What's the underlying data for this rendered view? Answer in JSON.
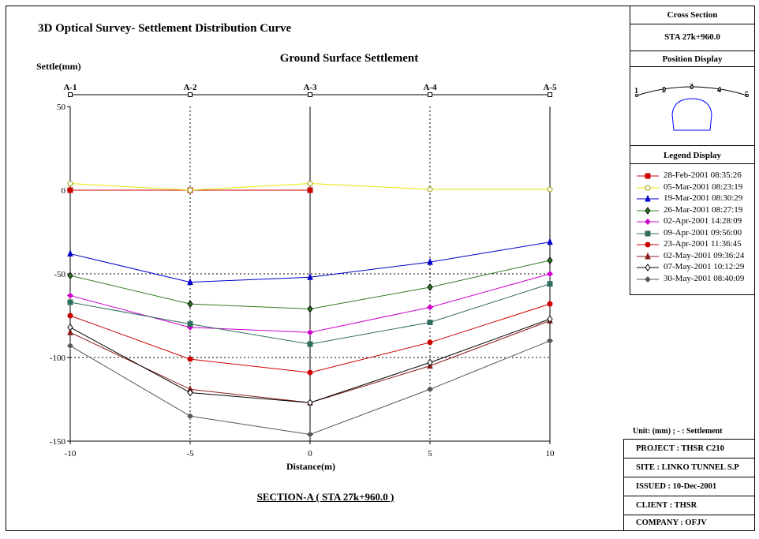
{
  "title": "3D Optical Survey-  Settlement Distribution Curve",
  "chart_title": "Ground Surface Settlement",
  "y_axis_title": "Settle(mm)",
  "x_axis_title": "Distance(m)",
  "section_label": "SECTION-A ( STA 27k+960.0 )",
  "sidebar": {
    "cross_section_heading": "Cross Section",
    "cross_section_value": "STA 27k+960.0",
    "position_heading": "Position Display",
    "position_points": [
      "1",
      "2",
      "3",
      "4",
      "5"
    ],
    "legend_heading": "Legend Display"
  },
  "unit_note": "Unit: (mm)  ;  - : Settlement",
  "info": [
    "PROJECT : THSR C210",
    "SITE : LINKO TUNNEL S.P",
    "ISSUED : 10-Dec-2001",
    "CLIENT : THSR",
    "COMPANY : OFJV"
  ],
  "chart_data": {
    "type": "line",
    "title": "Ground Surface Settlement",
    "xlabel": "Distance(m)",
    "ylabel": "Settle(mm)",
    "x": [
      -10,
      -5,
      0,
      5,
      10
    ],
    "x_ticks": [
      "-10",
      "-5",
      "0",
      "5",
      "10"
    ],
    "y_ticks": [
      "50",
      "0",
      "-50",
      "-100",
      "-150"
    ],
    "top_point_labels": [
      "A-1",
      "A-2",
      "A-3",
      "A-4",
      "A-5"
    ],
    "xlim": [
      -10,
      10
    ],
    "ylim": [
      -150,
      50
    ],
    "grid": "dotted at x = -5, 0, 5 and y = -50, -100",
    "legend_position": "right panel",
    "series": [
      {
        "name": "28-Feb-2001 08:35:26",
        "values": [
          0,
          0,
          0,
          null,
          null
        ],
        "color": "#cc0000",
        "marker": "square"
      },
      {
        "name": "05-Mar-2001 08:23:19",
        "values": [
          4,
          0,
          4,
          0.5,
          0.5
        ],
        "color": "#e6e600",
        "marker": "circle-open"
      },
      {
        "name": "19-Mar-2001 08:30:29",
        "values": [
          -38,
          -55,
          -52,
          -43,
          -31
        ],
        "color": "#0000cc",
        "marker": "triangle"
      },
      {
        "name": "26-Mar-2001 08:27:19",
        "values": [
          -51,
          -68,
          -71,
          -58,
          -42
        ],
        "color": "#2e7d1f",
        "marker": "diamond"
      },
      {
        "name": "02-Apr-2001 14:28:09",
        "values": [
          -63,
          -82,
          -85,
          -70,
          -50
        ],
        "color": "#cc00cc",
        "marker": "cross"
      },
      {
        "name": "09-Apr-2001 09:56:00",
        "values": [
          -67,
          -80,
          -92,
          -79,
          -56
        ],
        "color": "#2e6e5e",
        "marker": "square"
      },
      {
        "name": "23-Apr-2001 11:36:45",
        "values": [
          -75,
          -101,
          -109,
          -91,
          -68
        ],
        "color": "#cc0000",
        "marker": "circle"
      },
      {
        "name": "02-May-2001 09:36:24",
        "values": [
          -85,
          -119,
          -127,
          -105,
          -78
        ],
        "color": "#8b1a1a",
        "marker": "triangle"
      },
      {
        "name": "07-May-2001 10:12:29",
        "values": [
          -82,
          -121,
          -127,
          -103,
          -77
        ],
        "color": "#000000",
        "marker": "diamond-open"
      },
      {
        "name": "30-May-2001 08:40:09",
        "values": [
          -93,
          -135,
          -146,
          -119,
          -90
        ],
        "color": "#555555",
        "marker": "cross"
      }
    ]
  }
}
